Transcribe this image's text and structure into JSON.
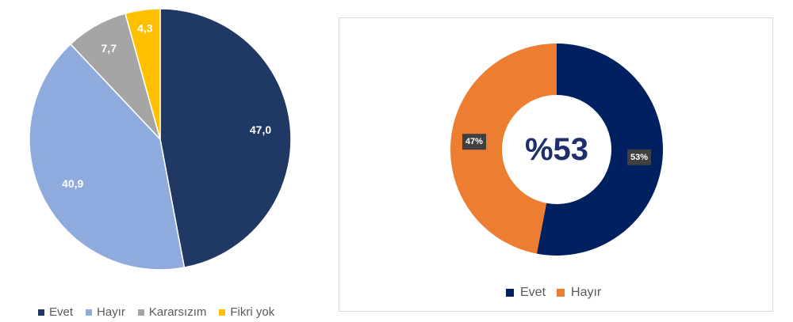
{
  "chart_data": [
    {
      "type": "pie",
      "categories": [
        "Evet",
        "Hayır",
        "Kararsızım",
        "Fikri yok"
      ],
      "values": [
        47.0,
        40.9,
        7.7,
        4.3
      ],
      "value_labels": [
        "47,0",
        "40,9",
        "7,7",
        "4,3"
      ],
      "colors": [
        "#203864",
        "#8faadc",
        "#a5a5a5",
        "#ffc000"
      ],
      "legend_position": "bottom"
    },
    {
      "type": "pie",
      "subtype": "donut",
      "categories": [
        "Evet",
        "Hayır"
      ],
      "values": [
        53,
        47
      ],
      "value_labels": [
        "53%",
        "47%"
      ],
      "colors": [
        "#002060",
        "#ed7d31"
      ],
      "center_label": "%53",
      "center_label_color": "#1f2f6b",
      "legend_position": "bottom"
    }
  ]
}
